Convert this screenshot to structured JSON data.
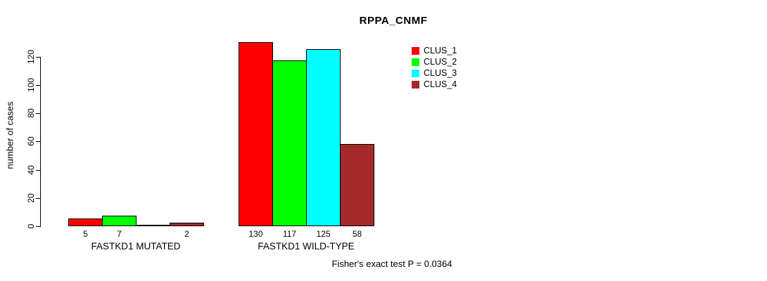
{
  "chart_data": {
    "type": "bar",
    "title": "RPPA_CNMF",
    "ylabel": "number of cases",
    "xlabel": "",
    "ylim": [
      0,
      130
    ],
    "yticks": [
      0,
      20,
      40,
      60,
      80,
      100,
      120
    ],
    "grid": false,
    "legend_position": "right",
    "categories": [
      "FASTKD1 MUTATED",
      "FASTKD1 WILD-TYPE"
    ],
    "series": [
      {
        "name": "CLUS_1",
        "color": "#ff0000",
        "values": [
          5,
          130
        ]
      },
      {
        "name": "CLUS_2",
        "color": "#00ff00",
        "values": [
          7,
          117
        ]
      },
      {
        "name": "CLUS_3",
        "color": "#00ffff",
        "values": [
          0,
          125
        ]
      },
      {
        "name": "CLUS_4",
        "color": "#a52a2a",
        "values": [
          2,
          58
        ]
      }
    ],
    "bar_value_labels_shown": [
      [
        "5",
        "7",
        "",
        "2"
      ],
      [
        "130",
        "117",
        "125",
        "58"
      ]
    ],
    "annotation": "Fisher's exact test P = 0.0364"
  }
}
